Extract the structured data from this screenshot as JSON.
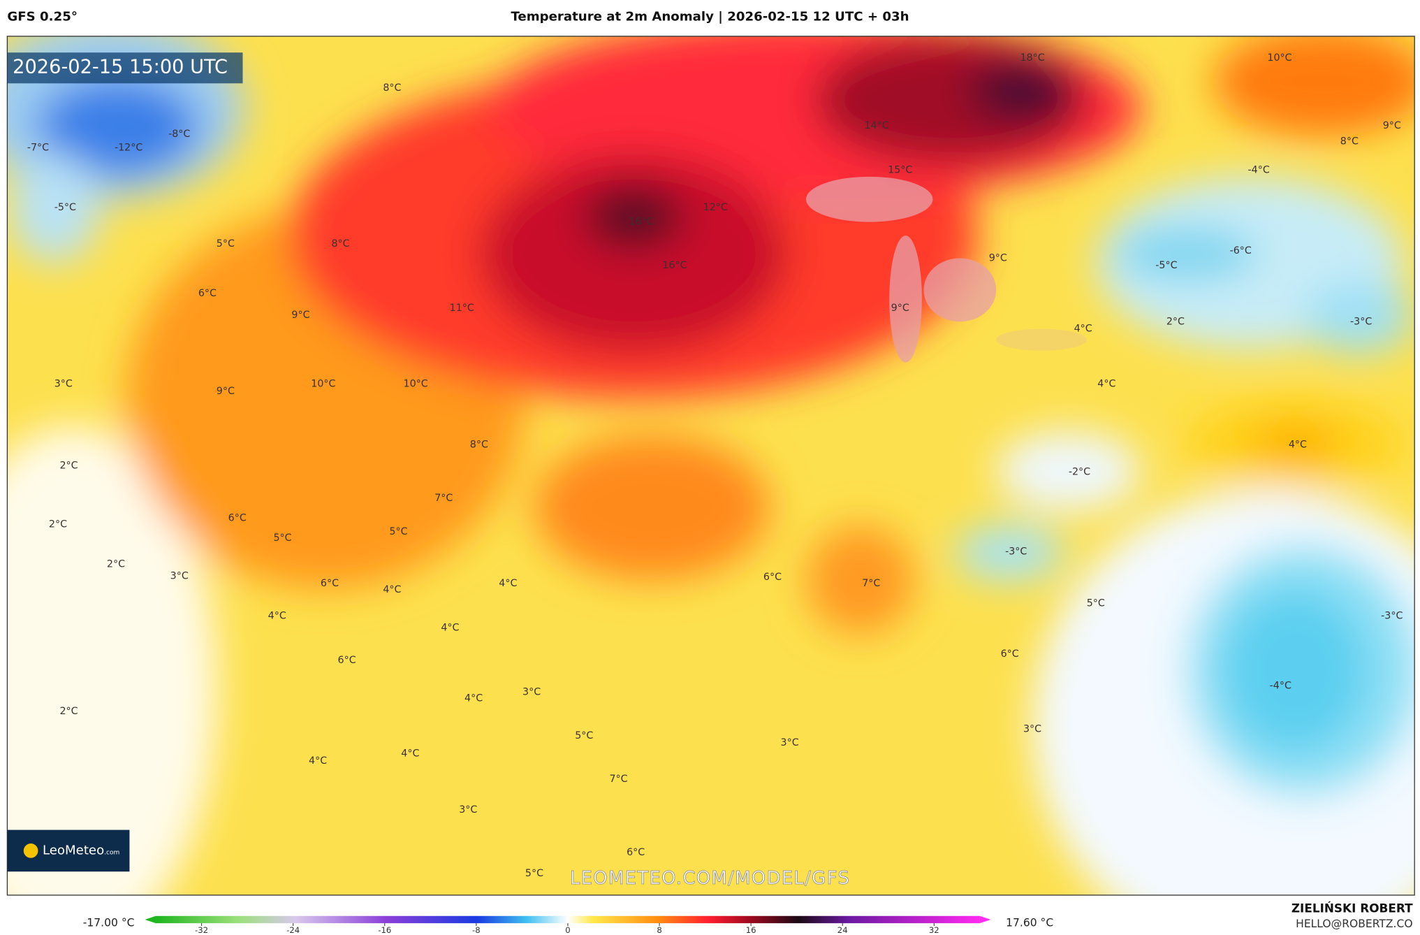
{
  "header": {
    "model": "GFS 0.25°",
    "title": "Temperature at 2m Anomaly | 2026-02-15 12 UTC + 03h"
  },
  "timestamp": "2026-02-15 15:00 UTC",
  "map_labels": [
    "8°C",
    "-8°C",
    "-12°C",
    "-7°C",
    "-5°C",
    "18°C",
    "14°C",
    "15°C",
    "10°C",
    "8°C",
    "9°C",
    "-4°C",
    "16°C",
    "12°C",
    "16°C",
    "5°C",
    "8°C",
    "6°C",
    "9°C",
    "11°C",
    "9°C",
    "-5°C",
    "-6°C",
    "9°C",
    "4°C",
    "2°C",
    "-3°C",
    "3°C",
    "9°C",
    "10°C",
    "10°C",
    "4°C",
    "8°C",
    "4°C",
    "2°C",
    "-2°C",
    "7°C",
    "6°C",
    "2°C",
    "5°C",
    "5°C",
    "-3°C",
    "2°C",
    "3°C",
    "6°C",
    "4°C",
    "4°C",
    "6°C",
    "7°C",
    "5°C",
    "-3°C",
    "4°C",
    "4°C",
    "6°C",
    "6°C",
    "-4°C",
    "3°C",
    "4°C",
    "2°C",
    "3°C",
    "5°C",
    "3°C",
    "4°C",
    "4°C",
    "7°C",
    "3°C",
    "6°C",
    "5°C"
  ],
  "logo": {
    "name": "LeoMeteo",
    "suffix": ".com"
  },
  "watermark": "LEOMETEO.COM/MODEL/GFS",
  "colorbar": {
    "min_label": "-17.00 °C",
    "max_label": "17.60 °C",
    "lim": [
      -36,
      36
    ],
    "ticks": [
      -32,
      -24,
      -16,
      -8,
      0,
      8,
      16,
      24,
      32
    ]
  },
  "credit": {
    "author": "ZIELIŃSKI ROBERT",
    "email": "HELLO@ROBERTZ.CO"
  }
}
